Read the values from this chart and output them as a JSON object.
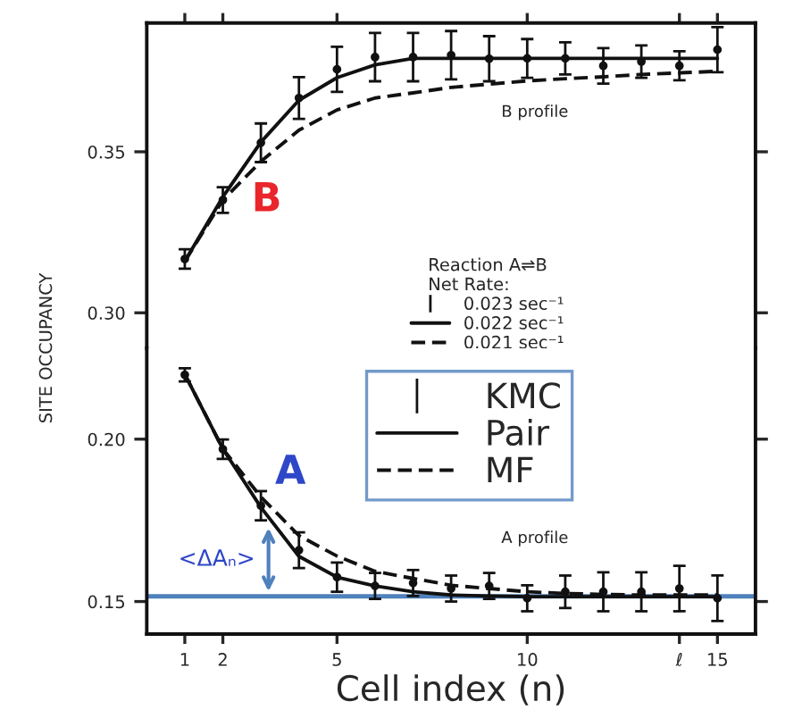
{
  "chart_data": [
    {
      "type": "line",
      "x": [
        1,
        2,
        3,
        4,
        5,
        6,
        7,
        8,
        9,
        10,
        11,
        12,
        13,
        14,
        15
      ],
      "xlim": [
        0,
        16
      ],
      "xticks": [
        1,
        2,
        5,
        10,
        14,
        15
      ],
      "ylim": [
        0.289,
        0.39
      ],
      "yticks": [
        {
          "value": 0.3,
          "label": "0.30"
        },
        {
          "value": 0.35,
          "label": "0.35"
        }
      ],
      "tick_labels": "y",
      "grid": false,
      "legend": "bottom",
      "legend_title": "Reaction A⇌B\nNet Rate:",
      "series": [
        {
          "name": "0.023 sec⁻¹",
          "type": "scatter",
          "marker": "circle",
          "color": "#111111",
          "values": [
            0.3167,
            0.335,
            0.3528,
            0.3667,
            0.3756,
            0.3794,
            0.3794,
            0.38,
            0.3789,
            0.379,
            0.379,
            0.3767,
            0.378,
            0.3767,
            0.3817
          ],
          "errors": [
            0.003,
            0.004,
            0.006,
            0.0065,
            0.007,
            0.0075,
            0.0075,
            0.0075,
            0.007,
            0.006,
            0.005,
            0.0055,
            0.005,
            0.0045,
            0.007
          ]
        },
        {
          "name": "0.022 sec⁻¹",
          "line_style": "solid",
          "color": "#111111",
          "values": [
            0.316,
            0.336,
            0.353,
            0.366,
            0.373,
            0.377,
            0.379,
            0.379,
            0.379,
            0.379,
            0.379,
            0.379,
            0.379,
            0.379,
            0.379
          ]
        },
        {
          "name": "0.021 sec⁻¹",
          "line_style": "dashed",
          "color": "#111111",
          "values": [
            0.316,
            0.335,
            0.347,
            0.3567,
            0.363,
            0.3667,
            0.3683,
            0.37,
            0.371,
            0.372,
            0.3727,
            0.3733,
            0.374,
            0.3745,
            0.375
          ]
        }
      ],
      "annotations": [
        "B",
        "B profile"
      ]
    },
    {
      "type": "line",
      "x": [
        1,
        2,
        3,
        4,
        5,
        6,
        7,
        8,
        9,
        10,
        11,
        12,
        13,
        14,
        15
      ],
      "xlim": [
        0,
        16
      ],
      "xticks": [
        1,
        2,
        5,
        10,
        {
          "value": 14,
          "label": "ℓ"
        },
        15
      ],
      "ylim": [
        0.14,
        0.228
      ],
      "yticks": [
        {
          "value": 0.15,
          "label": "0.15"
        },
        {
          "value": 0.2,
          "label": "0.20"
        }
      ],
      "xlabel": "Cell index (n)",
      "ylabel": "SITE OCCUPANCY",
      "grid": false,
      "legend": "top",
      "series": [
        {
          "name": "KMC",
          "type": "scatter",
          "marker": "circle",
          "color": "#111111",
          "values": [
            0.2198,
            0.1969,
            0.1795,
            0.1658,
            0.1575,
            0.1548,
            0.1557,
            0.154,
            0.1548,
            0.151,
            0.153,
            0.153,
            0.153,
            0.154,
            0.151
          ],
          "errors": [
            0.002,
            0.003,
            0.0045,
            0.0055,
            0.0045,
            0.004,
            0.004,
            0.004,
            0.004,
            0.004,
            0.005,
            0.006,
            0.006,
            0.007,
            0.007
          ]
        },
        {
          "name": "Pair",
          "line_style": "solid",
          "color": "#111111",
          "values": [
            0.22,
            0.197,
            0.179,
            0.1639,
            0.1575,
            0.1548,
            0.153,
            0.152,
            0.1517,
            0.1515,
            0.1515,
            0.1515,
            0.1515,
            0.1515,
            0.1515
          ]
        },
        {
          "name": "MF",
          "line_style": "dashed",
          "color": "#111111",
          "values": [
            0.22,
            0.197,
            0.1822,
            0.1703,
            0.164,
            0.1593,
            0.1571,
            0.155,
            0.154,
            0.153,
            0.1525,
            0.1522,
            0.152,
            0.152,
            0.152
          ]
        }
      ],
      "ref_lines": [
        {
          "axis": "y",
          "value": 0.1516,
          "color": "#4f81bd"
        }
      ],
      "annotations": [
        "A",
        "A profile",
        {
          "text": "<ΔAₙ>",
          "x": 3.2,
          "y": 0.1742
        }
      ]
    }
  ]
}
